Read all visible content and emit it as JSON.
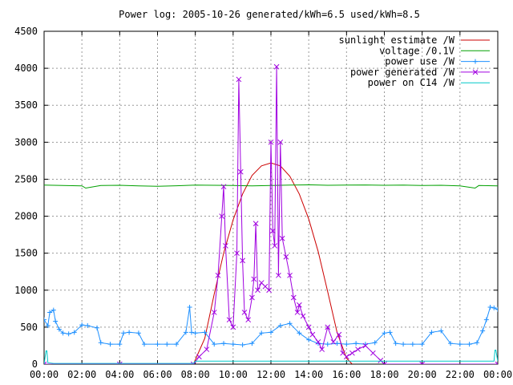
{
  "chart_data": {
    "type": "line",
    "title": "Power log: 2005-10-26 generated/kWh=6.5 used/kWh=8.5",
    "xlabel": "",
    "ylabel": "",
    "xlim": [
      0,
      24
    ],
    "ylim": [
      0,
      4500
    ],
    "grid": true,
    "legend_position": "top-right",
    "x_tick_labels": [
      "00:00",
      "02:00",
      "04:00",
      "06:00",
      "08:00",
      "10:00",
      "12:00",
      "14:00",
      "16:00",
      "18:00",
      "20:00",
      "22:00",
      "00:00"
    ],
    "x_tick_values": [
      0,
      2,
      4,
      6,
      8,
      10,
      12,
      14,
      16,
      18,
      20,
      22,
      24
    ],
    "y_tick_labels": [
      "0",
      "500",
      "1000",
      "1500",
      "2000",
      "2500",
      "3000",
      "3500",
      "4000",
      "4500"
    ],
    "y_tick_values": [
      0,
      500,
      1000,
      1500,
      2000,
      2500,
      3000,
      3500,
      4000,
      4500
    ],
    "series": [
      {
        "name": "sunlight estimate /W",
        "color": "#cc0000",
        "marker": "none",
        "x": [
          7.9,
          8.5,
          9,
          9.5,
          10,
          10.5,
          11,
          11.5,
          12,
          12.5,
          13,
          13.5,
          14,
          14.5,
          15,
          15.5,
          16,
          16.3
        ],
        "y": [
          0,
          350,
          950,
          1500,
          1950,
          2300,
          2550,
          2680,
          2720,
          2680,
          2540,
          2300,
          1960,
          1520,
          980,
          430,
          80,
          0
        ]
      },
      {
        "name": "voltage /0.1V",
        "color": "#00a000",
        "marker": "none",
        "x": [
          0,
          1,
          2,
          2.2,
          3,
          4,
          5,
          6,
          7,
          8,
          9,
          10,
          11,
          12,
          13,
          14,
          15,
          16,
          17,
          18,
          19,
          20,
          21,
          22,
          22.8,
          23,
          24
        ],
        "y": [
          2420,
          2415,
          2410,
          2380,
          2415,
          2418,
          2410,
          2405,
          2412,
          2420,
          2418,
          2415,
          2410,
          2415,
          2420,
          2425,
          2418,
          2420,
          2422,
          2418,
          2420,
          2415,
          2418,
          2410,
          2380,
          2415,
          2410
        ]
      },
      {
        "name": "power use /W",
        "color": "#1e90ff",
        "marker": "+",
        "x": [
          0,
          0.2,
          0.3,
          0.5,
          0.6,
          0.8,
          1.0,
          1.3,
          1.6,
          2.0,
          2.3,
          2.8,
          3.0,
          3.5,
          4.0,
          4.2,
          4.5,
          5.0,
          5.3,
          6.0,
          6.5,
          7.0,
          7.5,
          7.7,
          7.8,
          8.0,
          8.5,
          9.0,
          9.5,
          10.0,
          10.5,
          11.0,
          11.5,
          12.0,
          12.5,
          13.0,
          13.5,
          14.0,
          14.5,
          15.0,
          15.5,
          16.0,
          16.5,
          17.0,
          17.5,
          18.0,
          18.3,
          18.6,
          19.0,
          19.5,
          20.0,
          20.5,
          21.0,
          21.5,
          22.0,
          22.5,
          22.9,
          23.2,
          23.4,
          23.6,
          23.8,
          24.0
        ],
        "y": [
          600,
          520,
          700,
          730,
          580,
          470,
          420,
          410,
          430,
          530,
          520,
          490,
          290,
          270,
          270,
          420,
          430,
          420,
          270,
          270,
          270,
          270,
          430,
          770,
          430,
          420,
          430,
          270,
          280,
          270,
          260,
          280,
          420,
          430,
          520,
          550,
          420,
          330,
          280,
          270,
          280,
          270,
          280,
          270,
          290,
          420,
          430,
          280,
          270,
          270,
          270,
          430,
          450,
          280,
          270,
          270,
          290,
          450,
          600,
          770,
          760,
          740
        ]
      },
      {
        "name": "power generated /W",
        "color": "#a000e0",
        "marker": "x",
        "x": [
          0,
          4,
          7.9,
          8.2,
          8.6,
          9.0,
          9.2,
          9.4,
          9.5,
          9.6,
          9.8,
          10.0,
          10.2,
          10.3,
          10.4,
          10.5,
          10.6,
          10.8,
          11.0,
          11.1,
          11.2,
          11.3,
          11.5,
          11.7,
          11.9,
          12.0,
          12.1,
          12.2,
          12.3,
          12.4,
          12.5,
          12.6,
          12.8,
          13.0,
          13.2,
          13.4,
          13.5,
          13.7,
          14.0,
          14.2,
          14.5,
          14.7,
          15.0,
          15.3,
          15.6,
          15.8,
          16.0,
          16.3,
          16.6,
          17.0,
          17.4,
          17.8,
          18.0,
          20,
          24
        ],
        "y": [
          0,
          0,
          0,
          100,
          200,
          700,
          1200,
          2000,
          2400,
          1600,
          600,
          500,
          1500,
          3850,
          2600,
          1400,
          700,
          600,
          900,
          1150,
          1900,
          1000,
          1100,
          1050,
          1000,
          3000,
          1800,
          1600,
          4020,
          1200,
          3000,
          1700,
          1450,
          1200,
          900,
          700,
          800,
          650,
          500,
          400,
          300,
          200,
          500,
          300,
          400,
          150,
          100,
          150,
          200,
          250,
          150,
          50,
          0,
          0,
          0
        ]
      },
      {
        "name": "power on C14 /W",
        "color": "#00c8c8",
        "marker": "none",
        "x": [
          0,
          0.1,
          0.15,
          0.2,
          0.5,
          1,
          4,
          7.9,
          8.0,
          10,
          14,
          16,
          23.8,
          23.85,
          23.9,
          24
        ],
        "y": [
          0,
          180,
          180,
          20,
          10,
          10,
          10,
          10,
          40,
          40,
          40,
          40,
          40,
          190,
          190,
          40
        ]
      }
    ]
  }
}
